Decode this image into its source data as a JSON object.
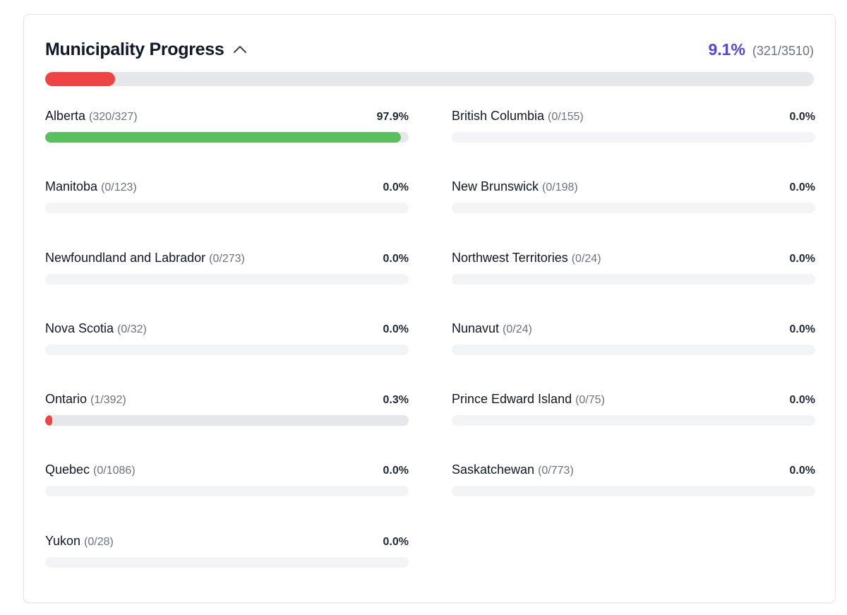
{
  "colors": {
    "accent": "#4f46e5",
    "progress_low": "#ef4444",
    "progress_high": "#5ac05e",
    "track": "#f3f4f6"
  },
  "header": {
    "title": "Municipality Progress",
    "collapse_icon": "chevron-up-icon",
    "overall_percent_label": "9.1%",
    "overall_count_label": "(321/3510)",
    "overall_fraction": 0.091
  },
  "provinces": [
    {
      "name": "Alberta",
      "count": "(320/327)",
      "percent": "97.9%",
      "fraction": 0.979
    },
    {
      "name": "British Columbia",
      "count": "(0/155)",
      "percent": "0.0%",
      "fraction": 0
    },
    {
      "name": "Manitoba",
      "count": "(0/123)",
      "percent": "0.0%",
      "fraction": 0
    },
    {
      "name": "New Brunswick",
      "count": "(0/198)",
      "percent": "0.0%",
      "fraction": 0
    },
    {
      "name": "Newfoundland and Labrador",
      "count": "(0/273)",
      "percent": "0.0%",
      "fraction": 0
    },
    {
      "name": "Northwest Territories",
      "count": "(0/24)",
      "percent": "0.0%",
      "fraction": 0
    },
    {
      "name": "Nova Scotia",
      "count": "(0/32)",
      "percent": "0.0%",
      "fraction": 0
    },
    {
      "name": "Nunavut",
      "count": "(0/24)",
      "percent": "0.0%",
      "fraction": 0
    },
    {
      "name": "Ontario",
      "count": "(1/392)",
      "percent": "0.3%",
      "fraction": 0.003
    },
    {
      "name": "Prince Edward Island",
      "count": "(0/75)",
      "percent": "0.0%",
      "fraction": 0
    },
    {
      "name": "Quebec",
      "count": "(0/1086)",
      "percent": "0.0%",
      "fraction": 0
    },
    {
      "name": "Saskatchewan",
      "count": "(0/773)",
      "percent": "0.0%",
      "fraction": 0
    },
    {
      "name": "Yukon",
      "count": "(0/28)",
      "percent": "0.0%",
      "fraction": 0
    }
  ]
}
